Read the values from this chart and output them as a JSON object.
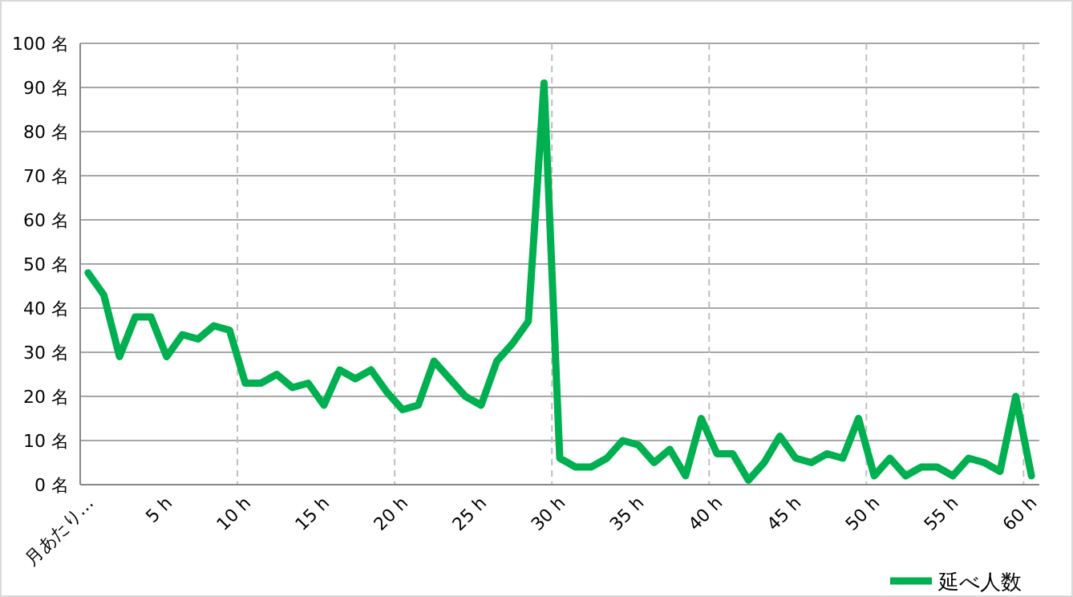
{
  "chart_data": {
    "type": "line",
    "categories": [
      "月あたり…",
      null,
      null,
      null,
      null,
      "5 h",
      null,
      null,
      null,
      null,
      "10 h",
      null,
      null,
      null,
      null,
      "15 h",
      null,
      null,
      null,
      null,
      "20 h",
      null,
      null,
      null,
      null,
      "25 h",
      null,
      null,
      null,
      null,
      "30 h",
      null,
      null,
      null,
      null,
      "35 h",
      null,
      null,
      null,
      null,
      "40 h",
      null,
      null,
      null,
      null,
      "45 h",
      null,
      null,
      null,
      null,
      "50 h",
      null,
      null,
      null,
      null,
      "55 h",
      null,
      null,
      null,
      null,
      "60 h"
    ],
    "series": [
      {
        "name": "延べ人数",
        "color": "#00b050",
        "values": [
          48,
          43,
          29,
          38,
          38,
          29,
          34,
          33,
          36,
          35,
          23,
          23,
          25,
          22,
          23,
          18,
          26,
          24,
          26,
          21,
          17,
          18,
          28,
          24,
          20,
          18,
          28,
          32,
          37,
          91,
          6,
          4,
          4,
          6,
          10,
          9,
          5,
          8,
          2,
          15,
          7,
          7,
          1,
          5,
          11,
          6,
          5,
          7,
          6,
          15,
          2,
          6,
          2,
          4,
          4,
          2,
          6,
          5,
          3,
          20,
          2
        ]
      }
    ],
    "ylim": [
      0,
      100
    ],
    "yticks": [
      {
        "value": 0,
        "label": "0 名"
      },
      {
        "value": 10,
        "label": "10 名"
      },
      {
        "value": 20,
        "label": "20 名"
      },
      {
        "value": 30,
        "label": "30 名"
      },
      {
        "value": 40,
        "label": "40 名"
      },
      {
        "value": 50,
        "label": "50 名"
      },
      {
        "value": 60,
        "label": "60 名"
      },
      {
        "value": 70,
        "label": "70 名"
      },
      {
        "value": 80,
        "label": "80 名"
      },
      {
        "value": 90,
        "label": "90 名"
      },
      {
        "value": 100,
        "label": "100 名"
      }
    ],
    "grid": true,
    "legend": "bottom right",
    "marker": "none",
    "line_style": "solid"
  }
}
